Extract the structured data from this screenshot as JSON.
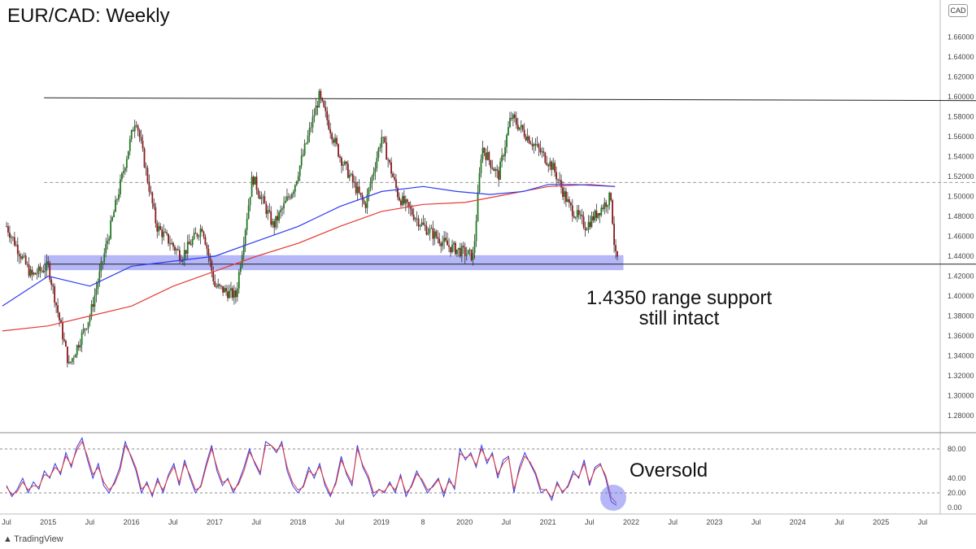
{
  "chart_data": [
    {
      "type": "candlestick",
      "title": "EUR/CAD: Weekly",
      "currency_badge": "CAD",
      "x_ticks": [
        "Jul",
        "2015",
        "Jul",
        "2016",
        "Jul",
        "2017",
        "Jul",
        "2018",
        "Jul",
        "2019",
        "8",
        "2020",
        "Jul",
        "2021",
        "Jul",
        "2022",
        "Jul",
        "2023",
        "Jul",
        "2024",
        "Jul",
        "2025",
        "Jul"
      ],
      "y_ticks": [
        "1.66000",
        "1.64000",
        "1.62000",
        "1.60000",
        "1.58000",
        "1.56000",
        "1.54000",
        "1.52000",
        "1.50000",
        "1.48000",
        "1.46000",
        "1.44000",
        "1.42000",
        "1.40000",
        "1.38000",
        "1.36000",
        "1.34000",
        "1.32000",
        "1.30000",
        "1.28000"
      ],
      "y_range": [
        1.27,
        1.68
      ],
      "key_points": [
        {
          "t": 2014.5,
          "price": 1.47
        },
        {
          "t": 2014.8,
          "price": 1.42
        },
        {
          "t": 2015.0,
          "price": 1.43
        },
        {
          "t": 2015.25,
          "price": 1.33
        },
        {
          "t": 2015.5,
          "price": 1.38
        },
        {
          "t": 2015.75,
          "price": 1.47
        },
        {
          "t": 2016.05,
          "price": 1.58
        },
        {
          "t": 2016.3,
          "price": 1.47
        },
        {
          "t": 2016.6,
          "price": 1.44
        },
        {
          "t": 2016.85,
          "price": 1.47
        },
        {
          "t": 2017.0,
          "price": 1.41
        },
        {
          "t": 2017.25,
          "price": 1.4
        },
        {
          "t": 2017.45,
          "price": 1.52
        },
        {
          "t": 2017.7,
          "price": 1.47
        },
        {
          "t": 2017.95,
          "price": 1.51
        },
        {
          "t": 2018.25,
          "price": 1.6
        },
        {
          "t": 2018.5,
          "price": 1.54
        },
        {
          "t": 2018.8,
          "price": 1.49
        },
        {
          "t": 2019.0,
          "price": 1.56
        },
        {
          "t": 2019.2,
          "price": 1.5
        },
        {
          "t": 2019.5,
          "price": 1.47
        },
        {
          "t": 2019.8,
          "price": 1.45
        },
        {
          "t": 2020.1,
          "price": 1.44
        },
        {
          "t": 2020.2,
          "price": 1.55
        },
        {
          "t": 2020.4,
          "price": 1.52
        },
        {
          "t": 2020.55,
          "price": 1.58
        },
        {
          "t": 2020.85,
          "price": 1.55
        },
        {
          "t": 2021.05,
          "price": 1.53
        },
        {
          "t": 2021.25,
          "price": 1.49
        },
        {
          "t": 2021.45,
          "price": 1.47
        },
        {
          "t": 2021.65,
          "price": 1.49
        },
        {
          "t": 2021.75,
          "price": 1.5
        },
        {
          "t": 2021.8,
          "price": 1.44
        },
        {
          "t": 2021.84,
          "price": 1.436
        }
      ],
      "ma_blue": [
        [
          2014.45,
          1.39
        ],
        [
          2015.0,
          1.42
        ],
        [
          2015.5,
          1.41
        ],
        [
          2016.0,
          1.43
        ],
        [
          2016.5,
          1.435
        ],
        [
          2017.0,
          1.44
        ],
        [
          2017.5,
          1.455
        ],
        [
          2018.0,
          1.47
        ],
        [
          2018.5,
          1.49
        ],
        [
          2019.0,
          1.505
        ],
        [
          2019.5,
          1.51
        ],
        [
          2019.9,
          1.505
        ],
        [
          2020.3,
          1.502
        ],
        [
          2020.7,
          1.505
        ],
        [
          2021.0,
          1.512
        ],
        [
          2021.3,
          1.512
        ],
        [
          2021.8,
          1.51
        ]
      ],
      "ma_red": [
        [
          2014.45,
          1.365
        ],
        [
          2015.0,
          1.37
        ],
        [
          2015.5,
          1.38
        ],
        [
          2016.0,
          1.39
        ],
        [
          2016.5,
          1.41
        ],
        [
          2017.0,
          1.425
        ],
        [
          2017.5,
          1.44
        ],
        [
          2018.0,
          1.453
        ],
        [
          2018.5,
          1.47
        ],
        [
          2019.0,
          1.485
        ],
        [
          2019.5,
          1.492
        ],
        [
          2020.0,
          1.494
        ],
        [
          2020.5,
          1.502
        ],
        [
          2021.0,
          1.51
        ],
        [
          2021.5,
          1.512
        ],
        [
          2021.8,
          1.51
        ]
      ],
      "resistance_line": {
        "t_start": 2014.95,
        "t_end": 2026.7,
        "price_start": 1.599,
        "price_end": 1.596
      },
      "mid_line": {
        "t_start": 2014.95,
        "t_end": 2026.7,
        "price": 1.514
      },
      "support_zone": {
        "t_start": 2014.95,
        "t_end": 2021.9,
        "price_low": 1.426,
        "price_high": 1.441
      },
      "support_line": {
        "t_start": 2014.95,
        "t_end": 2026.7,
        "price": 1.432
      },
      "annotation": [
        "1.4350 range support",
        "still intact"
      ],
      "watermark": "TradingView"
    },
    {
      "type": "line",
      "subtitle": "oscillator",
      "y_ticks": [
        "80.00",
        "40.00",
        "20.00",
        "0.00"
      ],
      "y_range": [
        -10,
        95
      ],
      "levels": [
        80,
        20
      ],
      "series": [
        {
          "color": "#2d3cf0",
          "values": [
            30,
            15,
            25,
            40,
            20,
            35,
            25,
            50,
            40,
            60,
            45,
            75,
            55,
            82,
            95,
            65,
            40,
            60,
            30,
            20,
            35,
            55,
            90,
            70,
            50,
            20,
            35,
            15,
            40,
            20,
            45,
            60,
            30,
            65,
            40,
            20,
            30,
            60,
            85,
            50,
            30,
            40,
            20,
            35,
            55,
            80,
            60,
            45,
            90,
            85,
            75,
            90,
            50,
            30,
            20,
            30,
            55,
            40,
            60,
            30,
            15,
            35,
            70,
            45,
            30,
            85,
            55,
            40,
            15,
            25,
            20,
            35,
            20,
            45,
            15,
            30,
            50,
            35,
            20,
            30,
            40,
            15,
            40,
            25,
            80,
            65,
            75,
            55,
            85,
            60,
            75,
            40,
            65,
            70,
            20,
            55,
            75,
            60,
            45,
            20,
            25,
            10,
            35,
            20,
            30,
            50,
            40,
            65,
            30,
            55,
            60,
            40,
            8,
            3
          ]
        },
        {
          "color": "#e53935",
          "values": [
            28,
            18,
            22,
            35,
            24,
            30,
            28,
            45,
            42,
            55,
            48,
            70,
            58,
            78,
            90,
            70,
            45,
            55,
            35,
            24,
            32,
            50,
            85,
            72,
            54,
            25,
            32,
            18,
            36,
            24,
            42,
            56,
            34,
            60,
            44,
            24,
            28,
            56,
            80,
            55,
            34,
            38,
            24,
            32,
            50,
            76,
            62,
            48,
            85,
            85,
            78,
            86,
            55,
            34,
            24,
            28,
            50,
            44,
            56,
            34,
            18,
            32,
            65,
            48,
            34,
            80,
            58,
            44,
            20,
            24,
            22,
            32,
            24,
            42,
            20,
            28,
            46,
            38,
            24,
            28,
            38,
            20,
            36,
            28,
            74,
            68,
            72,
            58,
            80,
            64,
            72,
            45,
            60,
            68,
            25,
            50,
            70,
            62,
            48,
            25,
            24,
            14,
            32,
            22,
            28,
            46,
            42,
            60,
            34,
            52,
            58,
            44,
            14,
            6
          ]
        }
      ],
      "annotation": "Oversold"
    }
  ],
  "page": {
    "title": "EUR/CAD: Weekly",
    "annotation_lines": [
      "1.4350 range support",
      "still intact"
    ],
    "oversold": "Oversold",
    "watermark": "TradingView",
    "currency": "CAD"
  },
  "colors": {
    "bull": "#1f7a1f",
    "bear": "#8b1a1a",
    "zone": "#6b6ff0",
    "ma_blue": "#2d3cf0",
    "ma_red": "#e53935"
  }
}
